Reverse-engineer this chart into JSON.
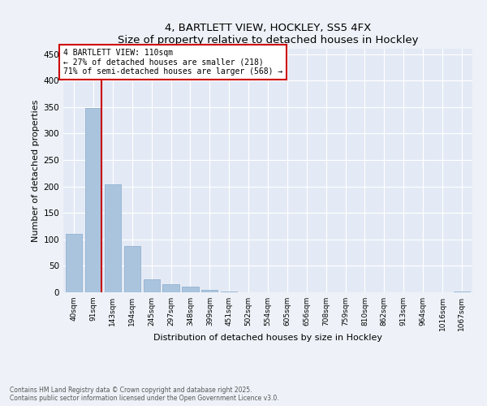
{
  "title": "4, BARTLETT VIEW, HOCKLEY, SS5 4FX",
  "subtitle": "Size of property relative to detached houses in Hockley",
  "xlabel": "Distribution of detached houses by size in Hockley",
  "ylabel": "Number of detached properties",
  "categories": [
    "40sqm",
    "91sqm",
    "143sqm",
    "194sqm",
    "245sqm",
    "297sqm",
    "348sqm",
    "399sqm",
    "451sqm",
    "502sqm",
    "554sqm",
    "605sqm",
    "656sqm",
    "708sqm",
    "759sqm",
    "810sqm",
    "862sqm",
    "913sqm",
    "964sqm",
    "1016sqm",
    "1067sqm"
  ],
  "values": [
    110,
    348,
    204,
    88,
    25,
    15,
    10,
    5,
    2,
    0,
    0,
    0,
    0,
    0,
    0,
    0,
    0,
    0,
    0,
    0,
    2
  ],
  "bar_color": "#aac4de",
  "bar_edge_color": "#88aacb",
  "vline_color": "#cc0000",
  "vline_x_index": 1.43,
  "annotation_line1": "4 BARTLETT VIEW: 110sqm",
  "annotation_line2": "← 27% of detached houses are smaller (218)",
  "annotation_line3": "71% of semi-detached houses are larger (568) →",
  "annotation_box_color": "#cc0000",
  "ylim": [
    0,
    460
  ],
  "yticks": [
    0,
    50,
    100,
    150,
    200,
    250,
    300,
    350,
    400,
    450
  ],
  "footer_line1": "Contains HM Land Registry data © Crown copyright and database right 2025.",
  "footer_line2": "Contains public sector information licensed under the Open Government Licence v3.0.",
  "bg_color": "#eef2f8",
  "plot_bg_color": "#e4eaf5"
}
